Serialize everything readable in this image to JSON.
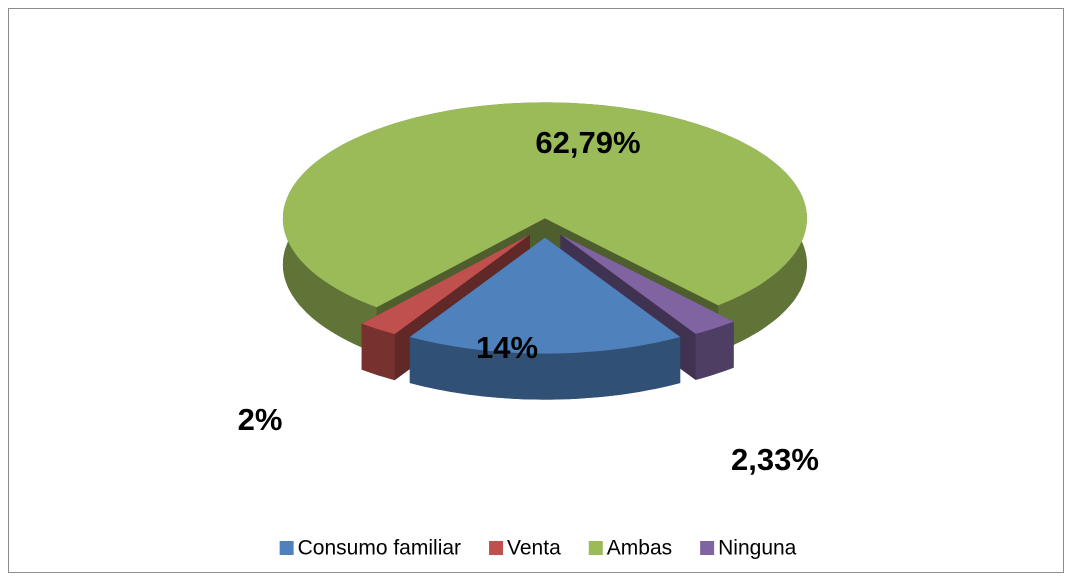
{
  "chart_data": {
    "type": "pie",
    "categories": [
      "Consumo familiar",
      "Venta",
      "Ambas",
      "Ninguna"
    ],
    "values": [
      14,
      2,
      62.79,
      2.33
    ],
    "value_labels": [
      "14%",
      "2%",
      "62,79%",
      "2,33%"
    ],
    "colors": [
      "#4f81bd",
      "#c0504d",
      "#9bbb59",
      "#8064a2"
    ],
    "legend": "bottom"
  }
}
